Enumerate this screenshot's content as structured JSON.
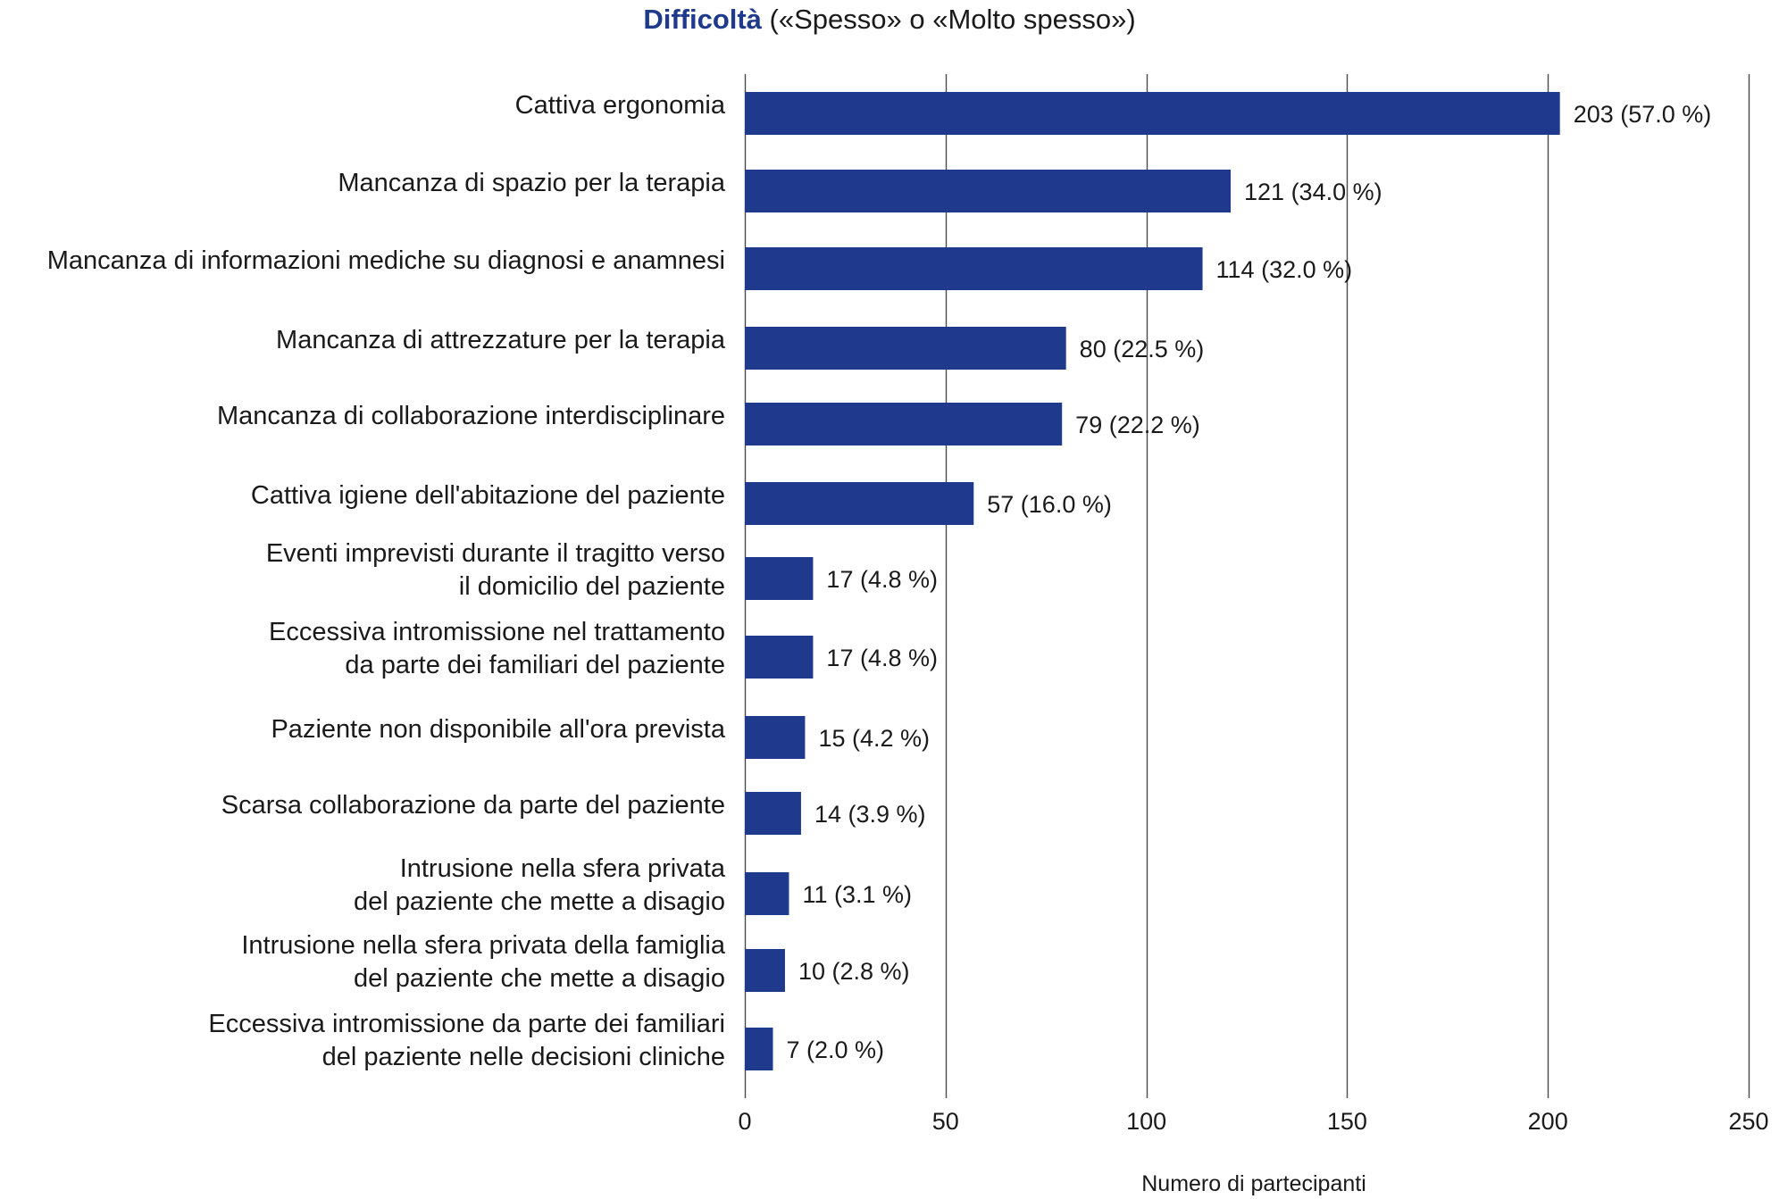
{
  "title": {
    "strong": "Difficoltà",
    "rest": " («Spesso» o «Molto spesso»)"
  },
  "chart_data": {
    "type": "bar",
    "orientation": "horizontal",
    "xlabel": "Numero di partecipanti",
    "xlim": [
      0,
      250
    ],
    "xticks": [
      0,
      50,
      100,
      150,
      200,
      250
    ],
    "grid": true,
    "bar_color": "#1f3a8c",
    "categories": [
      [
        "Cattiva ergonomia"
      ],
      [
        "Mancanza di spazio per la terapia"
      ],
      [
        "Mancanza di informazioni mediche su diagnosi e anamnesi"
      ],
      [
        "Mancanza di attrezzature per la terapia"
      ],
      [
        "Mancanza di collaborazione interdisciplinare"
      ],
      [
        "Cattiva igiene dell'abitazione del paziente"
      ],
      [
        "Eventi imprevisti durante il tragitto verso",
        "il domicilio del paziente"
      ],
      [
        "Eccessiva intromissione nel trattamento",
        "da parte dei familiari del paziente"
      ],
      [
        "Paziente non disponibile all'ora prevista"
      ],
      [
        "Scarsa collaborazione da parte del paziente"
      ],
      [
        "Intrusione nella sfera privata",
        "del paziente che mette a disagio"
      ],
      [
        "Intrusione nella sfera privata della famiglia",
        "del paziente che mette a disagio"
      ],
      [
        "Eccessiva intromissione da parte dei familiari",
        "del paziente nelle decisioni cliniche"
      ]
    ],
    "values": [
      203,
      121,
      114,
      80,
      79,
      57,
      17,
      17,
      15,
      14,
      11,
      10,
      7
    ],
    "value_labels": [
      "203 (57.0 %)",
      "121 (34.0 %)",
      "114 (32.0 %)",
      "80 (22.5 %)",
      "79 (22.2 %)",
      "57 (16.0 %)",
      "17 (4.8 %)",
      "17 (4.8 %)",
      "15 (4.2 %)",
      "14 (3.9 %)",
      "11 (3.1 %)",
      "10 (2.8 %)",
      "7 (2.0 %)"
    ]
  }
}
